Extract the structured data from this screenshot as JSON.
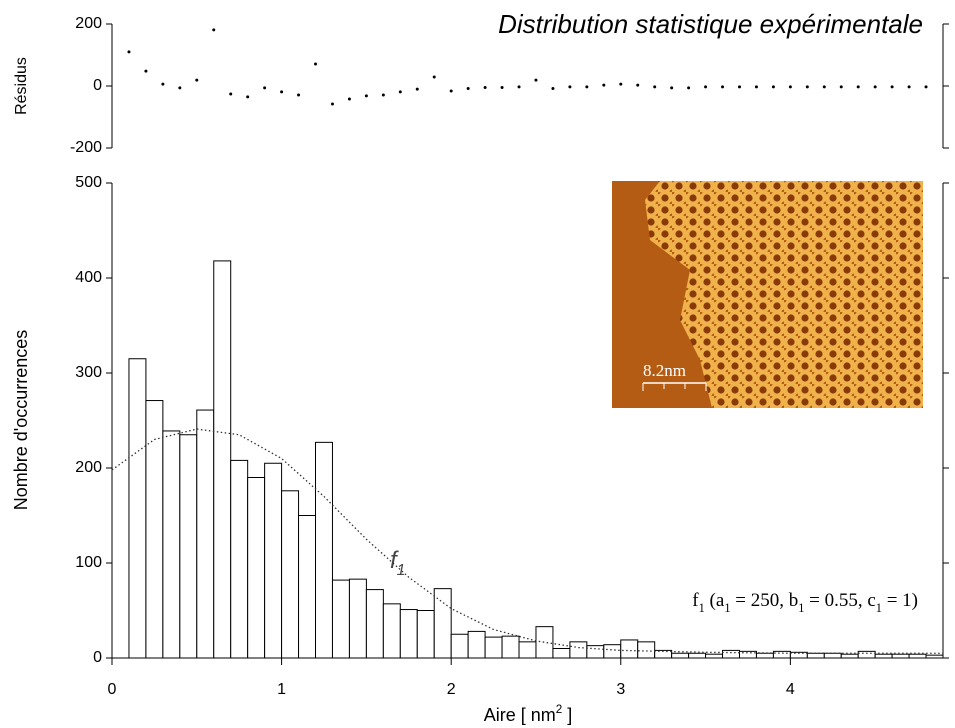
{
  "chart_data": {
    "type": "histogram",
    "title": "Distribution statistique expérimentale",
    "ylabel": "Nombre d'occurrences",
    "xlabel_parts": [
      {
        "text": "Aire [ nm",
        "sup": false
      },
      {
        "text": "2",
        "sup": true
      },
      {
        "text": " ]",
        "sup": false
      }
    ],
    "bins": [
      0.1,
      0.2,
      0.3,
      0.4,
      0.5,
      0.6,
      0.7,
      0.8,
      0.9,
      1.0,
      1.1,
      1.2,
      1.3,
      1.4,
      1.5,
      1.6,
      1.7,
      1.8,
      1.9,
      2.0,
      2.1,
      2.2,
      2.3,
      2.4,
      2.5,
      2.6,
      2.7,
      2.8,
      2.9,
      3.0,
      3.1,
      3.2,
      3.3,
      3.4,
      3.5,
      3.6,
      3.7,
      3.8,
      3.9,
      4.0,
      4.1,
      4.2,
      4.3,
      4.4,
      4.5,
      4.6,
      4.7,
      4.8,
      4.9
    ],
    "values": [
      315,
      271,
      239,
      235,
      261,
      418,
      208,
      190,
      205,
      176,
      150,
      227,
      82,
      83,
      72,
      57,
      51,
      50,
      73,
      25,
      28,
      22,
      23,
      17,
      33,
      10,
      17,
      13,
      14,
      19,
      17,
      8,
      5,
      5,
      4,
      8,
      7,
      5,
      7,
      6,
      5,
      5,
      4,
      7,
      4,
      4,
      4,
      3
    ],
    "color": "#ffffff",
    "xlim": [
      0,
      4.9
    ],
    "ylim": [
      0,
      500
    ],
    "xticks": [
      0,
      1,
      2,
      3,
      4
    ],
    "yticks": [
      0,
      100,
      200,
      300,
      400,
      500
    ],
    "fit": {
      "x": [
        0,
        0.25,
        0.5,
        0.75,
        1.0,
        1.25,
        1.5,
        1.75,
        2.0,
        2.25,
        2.5,
        2.75,
        3.0,
        3.5,
        4.0,
        4.5,
        4.9
      ],
      "values": [
        198,
        230,
        241,
        235,
        210,
        170,
        125,
        85,
        52,
        30,
        18,
        11,
        8,
        6,
        5,
        5,
        5
      ],
      "label_parts": [
        {
          "text": "f",
          "sub": false
        },
        {
          "text": "1",
          "sub": true
        }
      ]
    },
    "formula_parts": [
      {
        "text": "f",
        "sub": false
      },
      {
        "text": "1",
        "sub": true
      },
      {
        "text": "  (a",
        "sub": false
      },
      {
        "text": "1",
        "sub": true
      },
      {
        "text": " = 250, b",
        "sub": false
      },
      {
        "text": "1",
        "sub": true
      },
      {
        "text": " = 0.55, c",
        "sub": false
      },
      {
        "text": "1",
        "sub": true
      },
      {
        "text": " = 1)",
        "sub": false
      }
    ],
    "residuals": {
      "ylabel": "Résidus",
      "ylim": [
        -200,
        200
      ],
      "yticks": [
        -200,
        0,
        200
      ],
      "x": [
        0.1,
        0.2,
        0.3,
        0.4,
        0.5,
        0.6,
        0.7,
        0.8,
        0.9,
        1.0,
        1.1,
        1.2,
        1.3,
        1.4,
        1.5,
        1.6,
        1.7,
        1.8,
        1.9,
        2.0,
        2.1,
        2.2,
        2.3,
        2.4,
        2.5,
        2.6,
        2.7,
        2.8,
        2.9,
        3.0,
        3.1,
        3.2,
        3.3,
        3.4,
        3.5,
        3.6,
        3.7,
        3.8,
        3.9,
        4.0,
        4.1,
        4.2,
        4.3,
        4.4,
        4.5,
        4.6,
        4.7,
        4.8
      ],
      "values": [
        110,
        48,
        6,
        -6,
        19,
        181,
        -26,
        -35,
        -6,
        -19,
        -29,
        71,
        -58,
        -42,
        -32,
        -29,
        -19,
        -10,
        29,
        -16,
        -8,
        -5,
        -5,
        -3,
        19,
        -8,
        -3,
        -3,
        3,
        6,
        3,
        -3,
        -6,
        -6,
        -3,
        -3,
        -3,
        -3,
        -3,
        -3,
        -3,
        -3,
        -3,
        -3,
        -3,
        -3,
        -3,
        -3
      ]
    },
    "inset_scale_label": "8.2nm"
  }
}
